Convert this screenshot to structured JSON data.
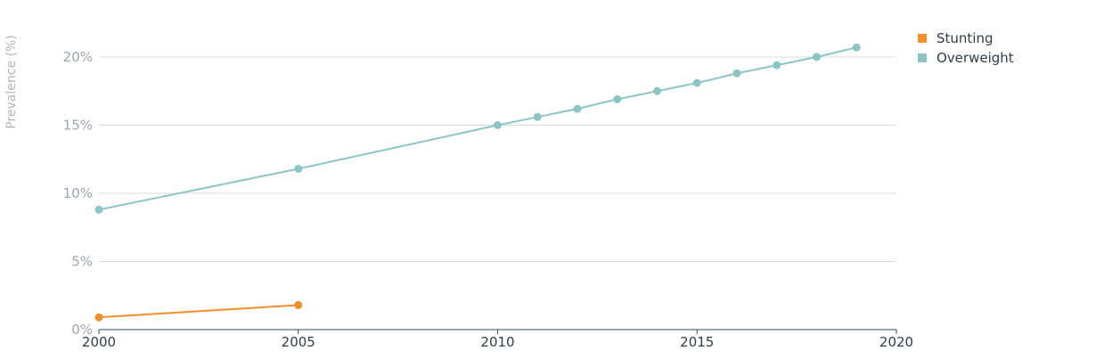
{
  "chart_data": {
    "type": "line",
    "ylabel": "Prevalence (%)",
    "xlim": [
      2000,
      2020
    ],
    "ylim": [
      0,
      22
    ],
    "x_ticks": [
      2000,
      2005,
      2010,
      2015,
      2020
    ],
    "y_ticks": [
      0,
      5,
      10,
      15,
      20
    ],
    "y_tick_labels": [
      "0%",
      "5%",
      "10%",
      "15%",
      "20%"
    ],
    "grid": true,
    "legend_position": "top-right",
    "series": [
      {
        "name": "Stunting",
        "color": "#f28e2b",
        "points": [
          [
            2000,
            0.9
          ],
          [
            2005,
            1.8
          ]
        ]
      },
      {
        "name": "Overweight",
        "color": "#8cc5c5",
        "points": [
          [
            2000,
            8.8
          ],
          [
            2005,
            11.8
          ],
          [
            2010,
            15.0
          ],
          [
            2011,
            15.6
          ],
          [
            2012,
            16.2
          ],
          [
            2013,
            16.9
          ],
          [
            2014,
            17.5
          ],
          [
            2015,
            18.1
          ],
          [
            2016,
            18.8
          ],
          [
            2017,
            19.4
          ],
          [
            2018,
            20.0
          ],
          [
            2019,
            20.7
          ]
        ]
      }
    ]
  }
}
